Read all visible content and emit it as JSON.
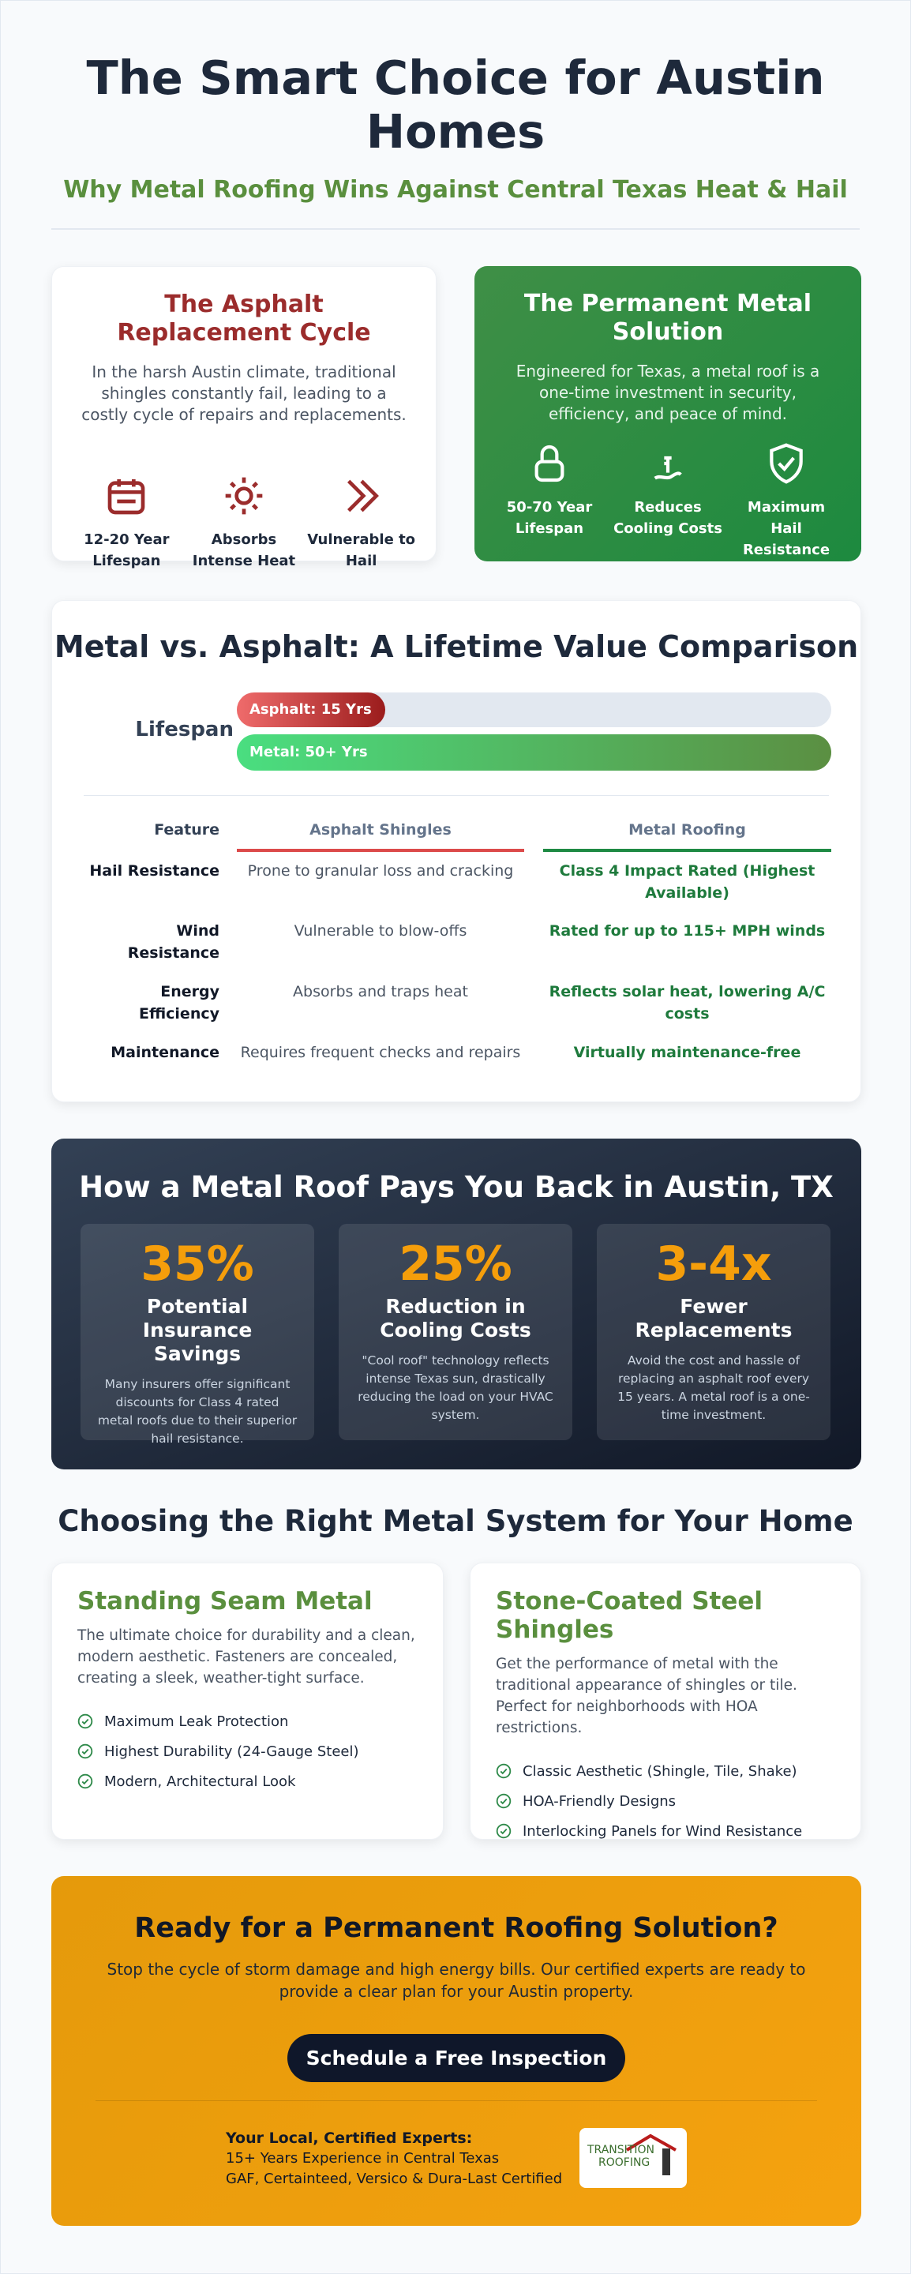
{
  "header": {
    "title": "The Smart Choice for Austin Homes",
    "subtitle": "Why Metal Roofing Wins Against Central Texas Heat & Hail"
  },
  "problem": {
    "title": "The Asphalt Replacement Cycle",
    "text": "In the harsh Austin climate, traditional shingles constantly fail, leading to a costly cycle of repairs and replacements.",
    "items": [
      "12-20 Year Lifespan",
      "Absorbs Intense Heat",
      "Vulnerable to Hail"
    ]
  },
  "solution": {
    "title": "The Permanent Metal Solution",
    "text": "Engineered for Texas, a metal roof is a one-time investment in security, efficiency, and peace of mind.",
    "items": [
      "50-70 Year Lifespan",
      "Reduces Cooling Costs",
      "Maximum Hail Resistance"
    ]
  },
  "comparison": {
    "title": "Metal vs. Asphalt: A Lifetime Value Comparison",
    "lifespan_label": "Lifespan",
    "asphalt_bar": "Asphalt: 15 Yrs",
    "metal_bar": "Metal: 50+ Yrs",
    "headers": [
      "Feature",
      "Asphalt Shingles",
      "Metal Roofing"
    ],
    "rows": [
      [
        "Hail Resistance",
        "Prone to granular loss and cracking",
        "Class 4 Impact Rated (Highest Available)"
      ],
      [
        "Wind Resistance",
        "Vulnerable to blow-offs",
        "Rated for up to 115+ MPH winds"
      ],
      [
        "Energy Efficiency",
        "Absorbs and traps heat",
        "Reflects solar heat, lowering A/C costs"
      ],
      [
        "Maintenance",
        "Requires frequent checks and repairs",
        "Virtually maintenance-free"
      ]
    ]
  },
  "payback": {
    "title": "How a Metal Roof Pays You Back in Austin, TX",
    "stats": [
      {
        "value": "35%",
        "label": "Potential Insurance Savings",
        "text": "Many insurers offer significant discounts for Class 4 rated metal roofs due to their superior hail resistance."
      },
      {
        "value": "25%",
        "label": "Reduction in Cooling Costs",
        "text": "\"Cool roof\" technology reflects intense Texas sun, drastically reducing the load on your HVAC system."
      },
      {
        "value": "3-4x",
        "label": "Fewer Replacements",
        "text": "Avoid the cost and hassle of replacing an asphalt roof every 15 years. A metal roof is a one-time investment."
      }
    ]
  },
  "systems": {
    "title": "Choosing the Right Metal System for Your Home",
    "cards": [
      {
        "title": "Standing Seam Metal",
        "text": "The ultimate choice for durability and a clean, modern aesthetic. Fasteners are concealed, creating a sleek, weather-tight surface.",
        "features": [
          "Maximum Leak Protection",
          "Highest Durability (24-Gauge Steel)",
          "Modern, Architectural Look"
        ]
      },
      {
        "title": "Stone-Coated Steel Shingles",
        "text": "Get the performance of metal with the traditional appearance of shingles or tile. Perfect for neighborhoods with HOA restrictions.",
        "features": [
          "Classic Aesthetic (Shingle, Tile, Shake)",
          "HOA-Friendly Designs",
          "Interlocking Panels for Wind Resistance"
        ]
      }
    ]
  },
  "cta": {
    "title": "Ready for a Permanent Roofing Solution?",
    "text": "Stop the cycle of storm damage and high energy bills. Our certified experts are ready to provide a clear plan for your Austin property.",
    "button": "Schedule a Free Inspection",
    "experts_title": "Your Local, Certified Experts:",
    "experts_lines": [
      "15+ Years Experience in Central Texas",
      "GAF, Certainteed, Versico & Dura-Last Certified"
    ],
    "logo": [
      "TRANSITION",
      "ROOFING"
    ]
  }
}
